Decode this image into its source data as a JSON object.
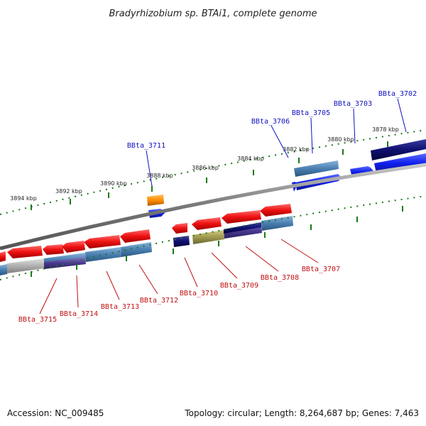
{
  "title": "Bradyrhizobium sp. BTAi1, complete genome",
  "footer": {
    "accession": "Accession: NC_009485",
    "summary": "Topology: circular; Length: 8,264,687 bp; Genes: 7,463"
  },
  "ticks": [
    "3878 kbp",
    "3880 kbp",
    "3882 kbp",
    "3884 kbp",
    "3886 kbp",
    "3888 kbp",
    "3890 kbp",
    "3892 kbp",
    "3894 kbp"
  ],
  "top_labels": [
    "BBta_3702",
    "BBta_3703",
    "BBta_3705",
    "BBta_3706",
    "BBta_3711"
  ],
  "bottom_labels": [
    "BBta_3707",
    "BBta_3708",
    "BBta_3709",
    "BBta_3710",
    "BBta_3712",
    "BBta_3713",
    "BBta_3714",
    "BBta_3715"
  ],
  "colors": {
    "backbone": "#888888",
    "tick_dots": "#1a7a1a",
    "cds_red": "#ee1111",
    "cds_blue": "#1020ee",
    "cds_navy": "#101070",
    "cds_steel": "#4a7fb0",
    "cds_olive": "#a09a50",
    "cds_gray": "#b0b0b0",
    "cds_orange": "#ff8c00",
    "label_top": "#1010c0",
    "label_bottom": "#c01010"
  }
}
